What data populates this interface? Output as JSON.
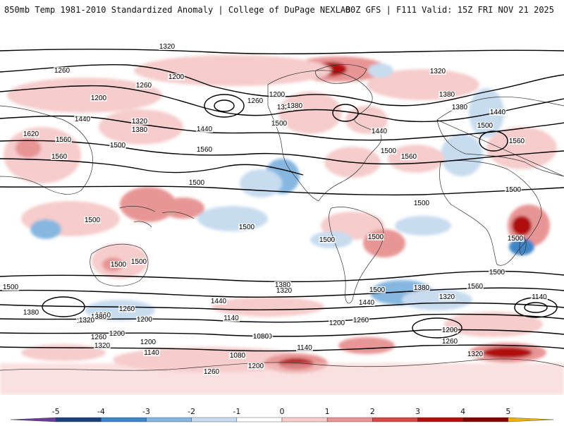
{
  "header": {
    "left": "850mb Temp 1981-2010 Standardized Anomaly | College of DuPage NEXLAB",
    "right": "00Z GFS | F111 Valid: 15Z FRI NOV 21 2025"
  },
  "colorbar": {
    "ticks": [
      "-5",
      "-4",
      "-3",
      "-2",
      "-1",
      "0",
      "1",
      "2",
      "3",
      "4",
      "5"
    ],
    "colors": [
      "#6a3d9a",
      "#1f3f7a",
      "#3f84c8",
      "#86b7e0",
      "#c8dcf0",
      "#ffffff",
      "#f6cccc",
      "#e89595",
      "#d34a4a",
      "#b01010",
      "#800000",
      "#f0b000"
    ]
  },
  "contours": [
    {
      "label": "1320"
    },
    {
      "label": "1260"
    },
    {
      "label": "1200"
    },
    {
      "label": "1140"
    },
    {
      "label": "1080"
    },
    {
      "label": "1380"
    },
    {
      "label": "1440"
    },
    {
      "label": "1500"
    },
    {
      "label": "1560"
    },
    {
      "label": "1620"
    }
  ],
  "labels": [
    {
      "text": "1320"
    },
    {
      "text": "1260"
    },
    {
      "text": "1200"
    },
    {
      "text": "1260"
    },
    {
      "text": "1200"
    },
    {
      "text": "1440"
    },
    {
      "text": "1320"
    },
    {
      "text": "1380"
    },
    {
      "text": "1500"
    },
    {
      "text": "1560"
    },
    {
      "text": "1620"
    },
    {
      "text": "1560"
    },
    {
      "text": "1440"
    },
    {
      "text": "1560"
    },
    {
      "text": "1200"
    },
    {
      "text": "1260"
    },
    {
      "text": "1320"
    },
    {
      "text": "1380"
    },
    {
      "text": "1500"
    },
    {
      "text": "1440"
    },
    {
      "text": "1500"
    },
    {
      "text": "1560"
    },
    {
      "text": "1320"
    },
    {
      "text": "1380"
    },
    {
      "text": "1380"
    },
    {
      "text": "1440"
    },
    {
      "text": "1500"
    },
    {
      "text": "1560"
    },
    {
      "text": "1500"
    },
    {
      "text": "1500"
    },
    {
      "text": "1500"
    },
    {
      "text": "1500"
    },
    {
      "text": "1500"
    },
    {
      "text": "1500"
    },
    {
      "text": "1500"
    },
    {
      "text": "1500"
    },
    {
      "text": "1500"
    },
    {
      "text": "1500"
    },
    {
      "text": "1500"
    },
    {
      "text": "1440"
    },
    {
      "text": "1380"
    },
    {
      "text": "1320"
    },
    {
      "text": "1500"
    },
    {
      "text": "1440"
    },
    {
      "text": "1380"
    },
    {
      "text": "1320"
    },
    {
      "text": "1560"
    },
    {
      "text": "1500"
    },
    {
      "text": "1380"
    },
    {
      "text": "1320"
    },
    {
      "text": "1260"
    },
    {
      "text": "1200"
    },
    {
      "text": "1140"
    },
    {
      "text": "1260"
    },
    {
      "text": "1200"
    },
    {
      "text": "1140"
    },
    {
      "text": "1260"
    },
    {
      "text": "1200"
    },
    {
      "text": "1380"
    },
    {
      "text": "1320"
    },
    {
      "text": "1260"
    },
    {
      "text": "1320"
    },
    {
      "text": "1200"
    },
    {
      "text": "1080"
    },
    {
      "text": "1140"
    },
    {
      "text": "1080"
    },
    {
      "text": "1140"
    },
    {
      "text": "1200"
    },
    {
      "text": "1260"
    },
    {
      "text": "1320"
    },
    {
      "text": "1260"
    },
    {
      "text": "1200"
    },
    {
      "text": "1140"
    }
  ]
}
